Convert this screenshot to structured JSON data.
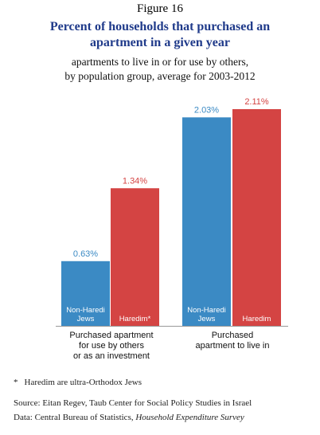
{
  "figure_label": "Figure 16",
  "title_line1": "Percent of households that purchased an",
  "title_line2": "apartment in a given year",
  "subtitle_line1": "apartments to live in or for use by others,",
  "subtitle_line2": "by population group, average for 2003-2012",
  "colors": {
    "non_haredi": "#3b8ac4",
    "haredim": "#d44443",
    "title": "#1f3a8a"
  },
  "chart_data": {
    "type": "bar",
    "groups": [
      {
        "label_lines": [
          "Purchased apartment",
          "for use by others",
          "or as an investment"
        ],
        "bars": [
          {
            "series": "non_haredi",
            "value": 0.63,
            "value_label": "0.63%",
            "name_lines": [
              "Non-Haredi",
              "Jews"
            ]
          },
          {
            "series": "haredim",
            "value": 1.34,
            "value_label": "1.34%",
            "name_lines": [
              "Haredim*"
            ]
          }
        ]
      },
      {
        "label_lines": [
          "Purchased",
          "apartment to live in"
        ],
        "bars": [
          {
            "series": "non_haredi",
            "value": 2.03,
            "value_label": "2.03%",
            "name_lines": [
              "Non-Haredi",
              "Jews"
            ]
          },
          {
            "series": "haredim",
            "value": 2.11,
            "value_label": "2.11%",
            "name_lines": [
              "Haredim"
            ]
          }
        ]
      }
    ],
    "ylim": [
      0,
      2.11
    ]
  },
  "footnote_star": "*",
  "footnote_text": "Haredim are ultra-Orthodox Jews",
  "source_text": "Source: Eitan Regev, Taub Center for Social Policy Studies in Israel",
  "data_prefix": "Data: Central Bureau of Statistics, ",
  "data_italic": "Household Expenditure Survey"
}
